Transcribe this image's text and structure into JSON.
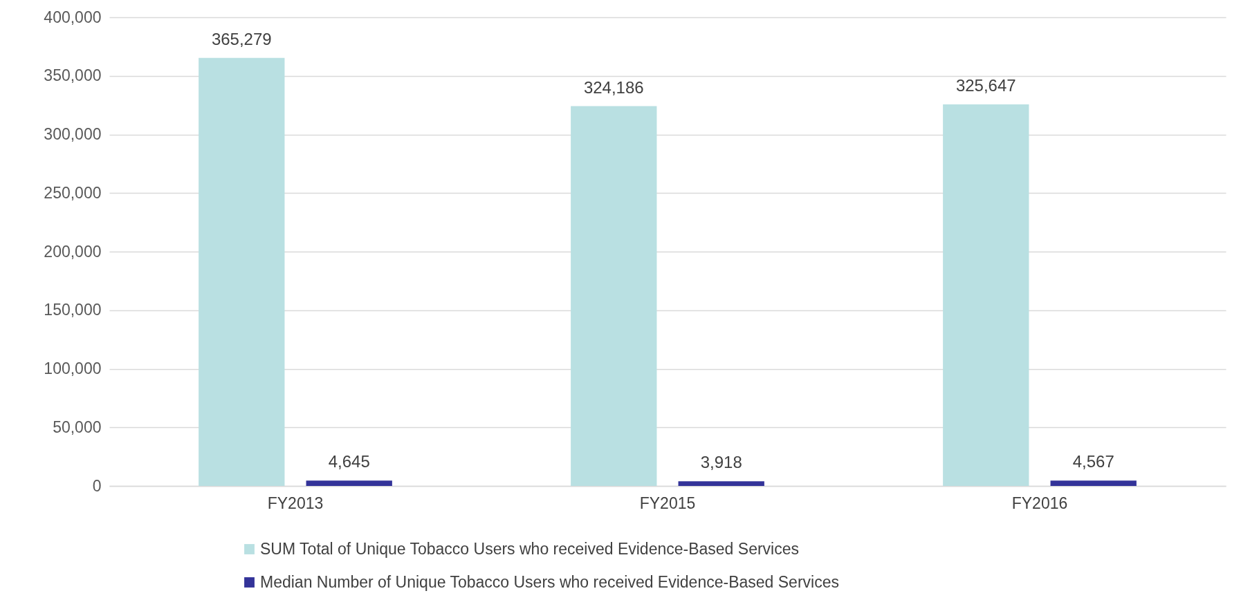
{
  "chart_data": {
    "type": "bar",
    "categories": [
      "FY2013",
      "FY2015",
      "FY2016"
    ],
    "series": [
      {
        "name": "SUM Total of Unique Tobacco Users who received Evidence-Based Services",
        "color": "#b9e0e2",
        "values": [
          365279,
          324186,
          325647
        ],
        "value_labels": [
          "365,279",
          "324,186",
          "325,647"
        ]
      },
      {
        "name": "Median Number of Unique Tobacco Users who received Evidence-Based Services",
        "color": "#333399",
        "values": [
          4645,
          3918,
          4567
        ],
        "value_labels": [
          "4,645",
          "3,918",
          "4,567"
        ]
      }
    ],
    "ylim": [
      0,
      400000
    ],
    "yticks": [
      0,
      {
        "value": 50000,
        "label": "50,000"
      },
      {
        "value": 100000,
        "label": "100,000"
      },
      {
        "value": 150000,
        "label": "150,000"
      },
      {
        "value": 200000,
        "label": "200,000"
      },
      {
        "value": 250000,
        "label": "250,000"
      },
      {
        "value": 300000,
        "label": "300,000"
      },
      {
        "value": 350000,
        "label": "350,000"
      },
      {
        "value": 400000,
        "label": "400,000"
      }
    ],
    "grid": "y",
    "legend": "bottom"
  }
}
